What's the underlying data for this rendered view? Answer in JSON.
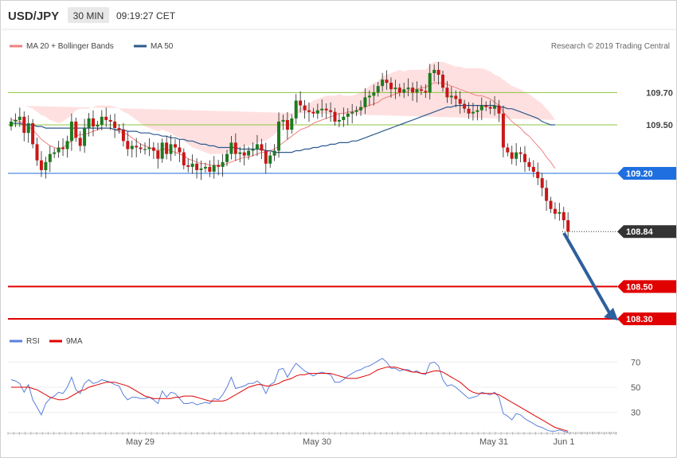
{
  "header": {
    "symbol": "USD/JPY",
    "timeframe": "30 MIN",
    "time": "09:19:27 CET"
  },
  "legend": {
    "ma20_label": "MA 20 + Bollinger Bands",
    "ma50_label": "MA 50",
    "copyright": "Research © 2019 Trading Central",
    "rsi_label": "RSI",
    "ma9_label": "9MA"
  },
  "colors": {
    "up": "#1e7a1e",
    "down": "#c81818",
    "ma20": "#f08080",
    "band_fill": "#ffd6d6",
    "ma50": "#2c5a8e",
    "green_level": "#8cc63f",
    "blue_level": "#1f6fe0",
    "red_level": "#e00000",
    "arrow": "#2c5f9e",
    "rsi": "#5b7fdc",
    "rsi_ma": "#e00000"
  },
  "chart_data": [
    {
      "type": "candlestick",
      "x_labels": [
        "May 29",
        "May 30",
        "May 31",
        "Jun 1"
      ],
      "price_levels": [
        {
          "value": 109.7,
          "label": "109.70",
          "style": "green"
        },
        {
          "value": 109.5,
          "label": "109.50",
          "style": "green"
        },
        {
          "value": 109.2,
          "label": "109.20",
          "style": "blue-badge"
        },
        {
          "value": 108.84,
          "label": "108.84",
          "style": "current-price"
        },
        {
          "value": 108.5,
          "label": "108.50",
          "style": "red-badge"
        },
        {
          "value": 108.3,
          "label": "108.30",
          "style": "red-badge"
        }
      ],
      "arrow_target": 108.3,
      "close": [
        109.52,
        109.53,
        109.55,
        109.45,
        109.51,
        109.38,
        109.28,
        109.22,
        109.27,
        109.32,
        109.33,
        109.36,
        109.35,
        109.4,
        109.52,
        109.42,
        109.37,
        109.48,
        109.54,
        109.49,
        109.5,
        109.55,
        109.53,
        109.52,
        109.48,
        109.47,
        109.4,
        109.35,
        109.37,
        109.36,
        109.35,
        109.35,
        109.36,
        109.34,
        109.29,
        109.39,
        109.32,
        109.38,
        109.36,
        109.33,
        109.25,
        109.24,
        109.26,
        109.22,
        109.23,
        109.24,
        109.21,
        109.25,
        109.24,
        109.27,
        109.32,
        109.39,
        109.32,
        109.33,
        109.31,
        109.34,
        109.35,
        109.38,
        109.34,
        109.26,
        109.31,
        109.34,
        109.52,
        109.53,
        109.47,
        109.54,
        109.65,
        109.62,
        109.59,
        109.58,
        109.57,
        109.59,
        109.6,
        109.59,
        109.58,
        109.52,
        109.53,
        109.55,
        109.57,
        109.58,
        109.59,
        109.61,
        109.67,
        109.68,
        109.7,
        109.74,
        109.78,
        109.76,
        109.72,
        109.73,
        109.7,
        109.72,
        109.73,
        109.7,
        109.72,
        109.71,
        109.7,
        109.82,
        109.84,
        109.81,
        109.73,
        109.67,
        109.68,
        109.66,
        109.63,
        109.6,
        109.57,
        109.58,
        109.59,
        109.62,
        109.61,
        109.6,
        109.62,
        109.57,
        109.36,
        109.33,
        109.29,
        109.33,
        109.32,
        109.27,
        109.24,
        109.21,
        109.17,
        109.11,
        109.03,
        108.98,
        108.95,
        108.96,
        108.91,
        108.84
      ],
      "ma20": [
        109.53,
        109.53,
        109.52,
        109.51,
        109.49,
        109.47,
        109.44,
        109.41,
        109.39,
        109.37,
        109.36,
        109.35,
        109.36,
        109.38,
        109.4,
        109.43,
        109.44,
        109.44,
        109.45,
        109.46,
        109.47,
        109.48,
        109.48,
        109.48,
        109.47,
        109.46,
        109.45,
        109.44,
        109.42,
        109.4,
        109.38,
        109.37,
        109.36,
        109.35,
        109.34,
        109.35,
        109.35,
        109.34,
        109.33,
        109.32,
        109.31,
        109.29,
        109.28,
        109.27,
        109.26,
        109.26,
        109.25,
        109.25,
        109.25,
        109.25,
        109.26,
        109.27,
        109.28,
        109.29,
        109.3,
        109.3,
        109.31,
        109.32,
        109.33,
        109.33,
        109.34,
        109.35,
        109.37,
        109.39,
        109.41,
        109.43,
        109.45,
        109.47,
        109.48,
        109.49,
        109.51,
        109.52,
        109.53,
        109.54,
        109.55,
        109.56,
        109.57,
        109.57,
        109.58,
        109.58,
        109.59,
        109.6,
        109.61,
        109.62,
        109.63,
        109.64,
        109.66,
        109.67,
        109.68,
        109.69,
        109.7,
        109.7,
        109.71,
        109.72,
        109.72,
        109.73,
        109.73,
        109.75,
        109.76,
        109.76,
        109.76,
        109.75,
        109.74,
        109.73,
        109.72,
        109.71,
        109.7,
        109.69,
        109.68,
        109.68,
        109.67,
        109.66,
        109.64,
        109.62,
        109.58,
        109.55,
        109.52,
        109.5,
        109.48,
        109.45,
        109.43,
        109.4,
        109.37,
        109.34,
        109.3,
        109.27,
        109.23
      ],
      "ma50": [
        109.51,
        109.51,
        109.51,
        109.5,
        109.5,
        109.5,
        109.49,
        109.49,
        109.48,
        109.48,
        109.48,
        109.48,
        109.48,
        109.48,
        109.48,
        109.48,
        109.48,
        109.48,
        109.48,
        109.48,
        109.48,
        109.48,
        109.48,
        109.48,
        109.47,
        109.47,
        109.47,
        109.46,
        109.46,
        109.46,
        109.45,
        109.45,
        109.45,
        109.44,
        109.44,
        109.43,
        109.43,
        109.42,
        109.42,
        109.41,
        109.41,
        109.4,
        109.4,
        109.39,
        109.38,
        109.38,
        109.37,
        109.37,
        109.36,
        109.36,
        109.36,
        109.36,
        109.36,
        109.35,
        109.35,
        109.35,
        109.35,
        109.35,
        109.35,
        109.34,
        109.34,
        109.33,
        109.33,
        109.33,
        109.33,
        109.33,
        109.34,
        109.34,
        109.35,
        109.35,
        109.36,
        109.36,
        109.37,
        109.37,
        109.38,
        109.38,
        109.39,
        109.39,
        109.39,
        109.4,
        109.4,
        109.41,
        109.42,
        109.43,
        109.44,
        109.45,
        109.46,
        109.47,
        109.48,
        109.49,
        109.5,
        109.51,
        109.52,
        109.53,
        109.54,
        109.55,
        109.56,
        109.57,
        109.58,
        109.59,
        109.6,
        109.61,
        109.61,
        109.62,
        109.62,
        109.62,
        109.62,
        109.62,
        109.62,
        109.62,
        109.62,
        109.62,
        109.62,
        109.61,
        109.61,
        109.6,
        109.6,
        109.59,
        109.58,
        109.57,
        109.56,
        109.55,
        109.54,
        109.52,
        109.51,
        109.5,
        109.5
      ],
      "band_width": [
        0.09,
        0.09,
        0.1,
        0.11,
        0.12,
        0.13,
        0.14,
        0.15,
        0.16,
        0.16,
        0.16,
        0.16,
        0.16,
        0.16,
        0.16,
        0.16,
        0.16,
        0.16,
        0.15,
        0.15,
        0.15,
        0.14,
        0.14,
        0.14,
        0.14,
        0.14,
        0.13,
        0.13,
        0.13,
        0.13,
        0.13,
        0.12,
        0.12,
        0.12,
        0.12,
        0.12,
        0.11,
        0.11,
        0.1,
        0.1,
        0.09,
        0.09,
        0.08,
        0.08,
        0.08,
        0.07,
        0.07,
        0.07,
        0.07,
        0.07,
        0.07,
        0.07,
        0.07,
        0.07,
        0.07,
        0.07,
        0.07,
        0.07,
        0.07,
        0.07,
        0.08,
        0.09,
        0.1,
        0.11,
        0.12,
        0.13,
        0.13,
        0.14,
        0.14,
        0.14,
        0.14,
        0.14,
        0.14,
        0.14,
        0.13,
        0.12,
        0.12,
        0.11,
        0.1,
        0.1,
        0.1,
        0.1,
        0.11,
        0.12,
        0.13,
        0.13,
        0.14,
        0.14,
        0.14,
        0.14,
        0.14,
        0.13,
        0.13,
        0.12,
        0.12,
        0.11,
        0.11,
        0.12,
        0.13,
        0.13,
        0.13,
        0.13,
        0.13,
        0.13,
        0.14,
        0.14,
        0.15,
        0.16,
        0.17,
        0.17,
        0.17,
        0.17,
        0.17,
        0.18,
        0.2,
        0.21,
        0.22,
        0.23,
        0.24,
        0.25,
        0.26,
        0.27,
        0.28,
        0.29,
        0.3,
        0.3,
        0.3
      ],
      "y_range": [
        108.22,
        109.88
      ]
    },
    {
      "type": "line",
      "name": "RSI",
      "y_ticks": [
        70,
        50,
        30
      ],
      "ylim": [
        18,
        80
      ],
      "rsi": [
        56,
        55,
        53,
        46,
        52,
        40,
        34,
        28,
        37,
        41,
        43,
        46,
        45,
        50,
        58,
        48,
        45,
        53,
        56,
        53,
        54,
        56,
        55,
        54,
        52,
        51,
        44,
        40,
        42,
        42,
        41,
        41,
        42,
        40,
        37,
        47,
        42,
        46,
        45,
        41,
        37,
        37,
        38,
        36,
        37,
        38,
        37,
        41,
        40,
        44,
        50,
        58,
        49,
        50,
        51,
        53,
        53,
        55,
        52,
        45,
        52,
        54,
        64,
        65,
        58,
        64,
        69,
        66,
        63,
        61,
        59,
        61,
        62,
        61,
        60,
        54,
        54,
        56,
        59,
        61,
        63,
        64,
        66,
        67,
        69,
        71,
        73,
        70,
        65,
        65,
        63,
        64,
        64,
        62,
        63,
        61,
        60,
        69,
        70,
        67,
        56,
        51,
        52,
        50,
        47,
        44,
        41,
        42,
        43,
        46,
        45,
        44,
        46,
        42,
        29,
        27,
        24,
        29,
        28,
        25,
        23,
        21,
        19,
        18,
        16,
        15,
        15,
        16,
        15,
        14
      ],
      "ma9": [
        50,
        50,
        50,
        50,
        50,
        49,
        48,
        46,
        44,
        42,
        41,
        40,
        40,
        41,
        43,
        45,
        47,
        48,
        50,
        51,
        52,
        53,
        54,
        54,
        54,
        53,
        52,
        51,
        49,
        47,
        45,
        43,
        42,
        41,
        41,
        41,
        41,
        41,
        42,
        42,
        43,
        43,
        43,
        42,
        41,
        40,
        39,
        39,
        39,
        39,
        40,
        42,
        44,
        46,
        48,
        50,
        51,
        52,
        52,
        51,
        51,
        52,
        53,
        55,
        56,
        57,
        59,
        60,
        60,
        61,
        61,
        61,
        61,
        61,
        61,
        60,
        59,
        58,
        57,
        57,
        57,
        58,
        59,
        60,
        62,
        64,
        65,
        66,
        66,
        66,
        65,
        64,
        63,
        62,
        62,
        61,
        61,
        62,
        63,
        63,
        62,
        60,
        58,
        56,
        54,
        51,
        48,
        46,
        45,
        45,
        45,
        45,
        45,
        44,
        42,
        40,
        38,
        36,
        34,
        32,
        30,
        28,
        26,
        24,
        22,
        20,
        18,
        17,
        16,
        15
      ]
    }
  ]
}
